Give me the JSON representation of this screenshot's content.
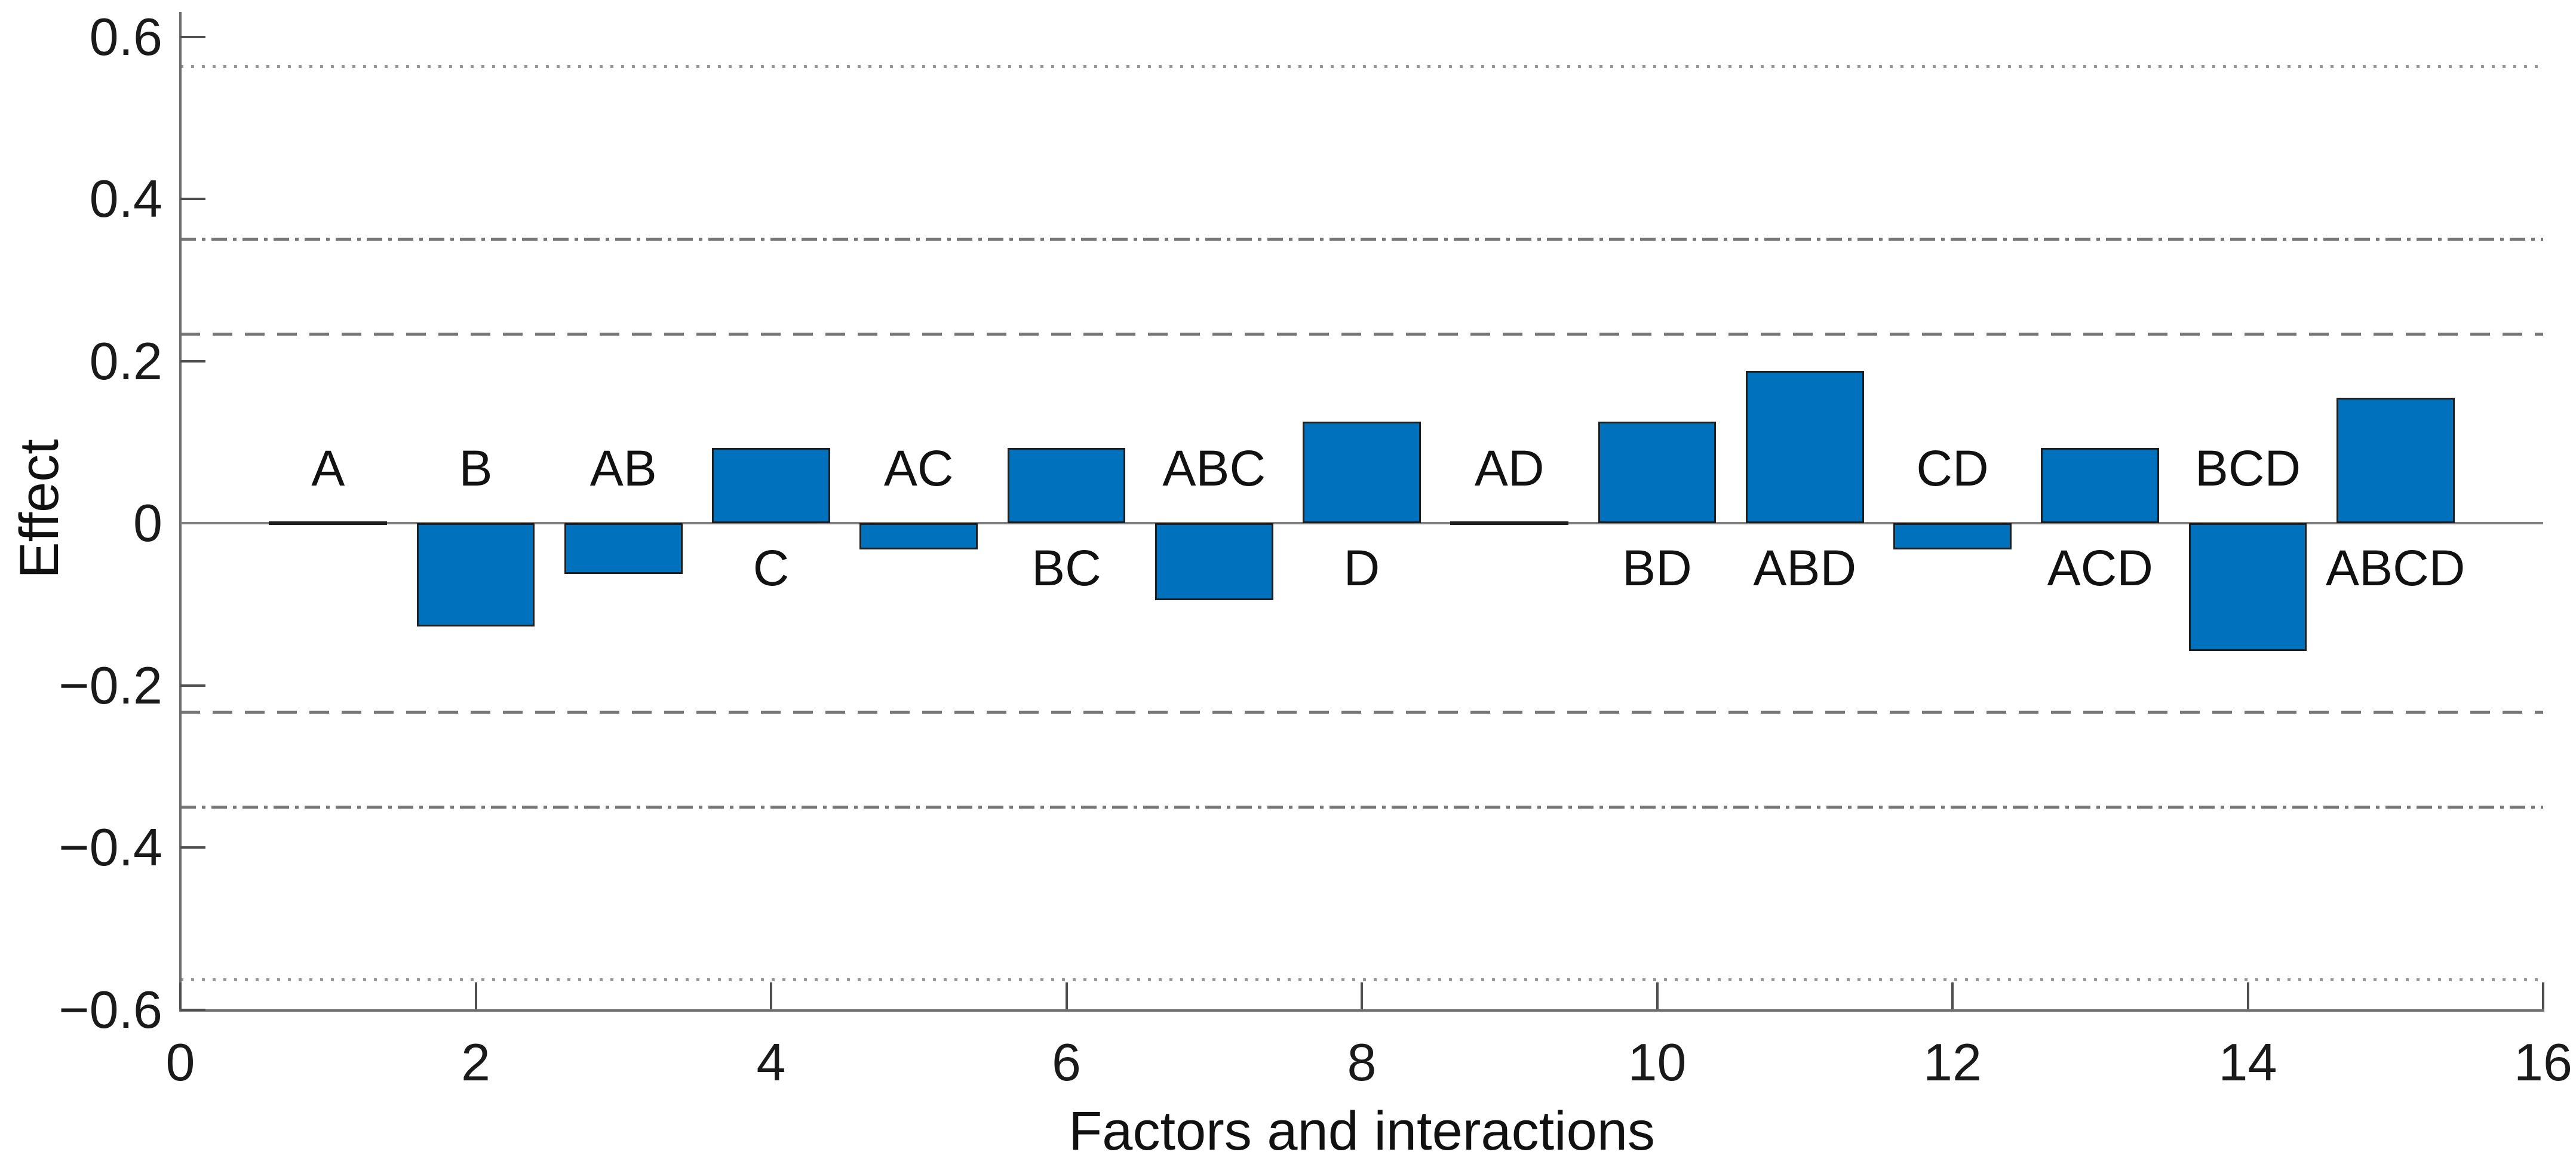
{
  "chart_data": {
    "type": "bar",
    "title": "",
    "xlabel": "Factors and interactions",
    "ylabel": "Effect",
    "xlim": [
      0,
      16
    ],
    "ylim": [
      -0.6,
      0.6
    ],
    "grid": false,
    "legend": "none",
    "bar_color": "#0072BD",
    "bar_edge_color": "#1f1f1f",
    "bar_width": 0.8,
    "axis_color": "#6e6e6e",
    "zero_line_color": "#808080",
    "reference_line_color": "#757575",
    "x_ticks": [
      {
        "value": 0,
        "label": "0"
      },
      {
        "value": 2,
        "label": "2"
      },
      {
        "value": 4,
        "label": "4"
      },
      {
        "value": 6,
        "label": "6"
      },
      {
        "value": 8,
        "label": "8"
      },
      {
        "value": 10,
        "label": "10"
      },
      {
        "value": 12,
        "label": "12"
      },
      {
        "value": 14,
        "label": "14"
      },
      {
        "value": 16,
        "label": "16"
      }
    ],
    "y_ticks": [
      {
        "value": 0.6,
        "label": "0.6"
      },
      {
        "value": 0.4,
        "label": "0.4"
      },
      {
        "value": 0.2,
        "label": "0.2"
      },
      {
        "value": 0,
        "label": "0"
      },
      {
        "value": -0.2,
        "label": "−0.2"
      },
      {
        "value": -0.4,
        "label": "−0.4"
      },
      {
        "value": -0.6,
        "label": "−0.6"
      }
    ],
    "bars": [
      {
        "x": 1,
        "factor": "A",
        "effect": 0.002,
        "label_position": "above"
      },
      {
        "x": 2,
        "factor": "B",
        "effect": -0.1275,
        "label_position": "above"
      },
      {
        "x": 3,
        "factor": "AB",
        "effect": -0.0625,
        "label_position": "above"
      },
      {
        "x": 4,
        "factor": "C",
        "effect": 0.0925,
        "label_position": "below"
      },
      {
        "x": 5,
        "factor": "AC",
        "effect": -0.0325,
        "label_position": "above"
      },
      {
        "x": 6,
        "factor": "BC",
        "effect": 0.0925,
        "label_position": "below"
      },
      {
        "x": 7,
        "factor": "ABC",
        "effect": -0.095,
        "label_position": "above"
      },
      {
        "x": 8,
        "factor": "D",
        "effect": 0.125,
        "label_position": "below"
      },
      {
        "x": 9,
        "factor": "AD",
        "effect": 0.002,
        "label_position": "above"
      },
      {
        "x": 10,
        "factor": "BD",
        "effect": 0.125,
        "label_position": "below"
      },
      {
        "x": 11,
        "factor": "ABD",
        "effect": 0.1875,
        "label_position": "below"
      },
      {
        "x": 12,
        "factor": "CD",
        "effect": -0.0325,
        "label_position": "above"
      },
      {
        "x": 13,
        "factor": "ACD",
        "effect": 0.0925,
        "label_position": "below"
      },
      {
        "x": 14,
        "factor": "BCD",
        "effect": -0.1575,
        "label_position": "above"
      },
      {
        "x": 15,
        "factor": "ABCD",
        "effect": 0.155,
        "label_position": "below"
      }
    ],
    "zero_line": 0,
    "reference_lines": [
      {
        "value": 0.563,
        "style": "dotted"
      },
      {
        "value": 0.35,
        "style": "dashdot"
      },
      {
        "value": 0.233,
        "style": "dashed"
      },
      {
        "value": -0.233,
        "style": "dashed"
      },
      {
        "value": -0.35,
        "style": "dashdot"
      },
      {
        "value": -0.563,
        "style": "dotted"
      }
    ]
  }
}
